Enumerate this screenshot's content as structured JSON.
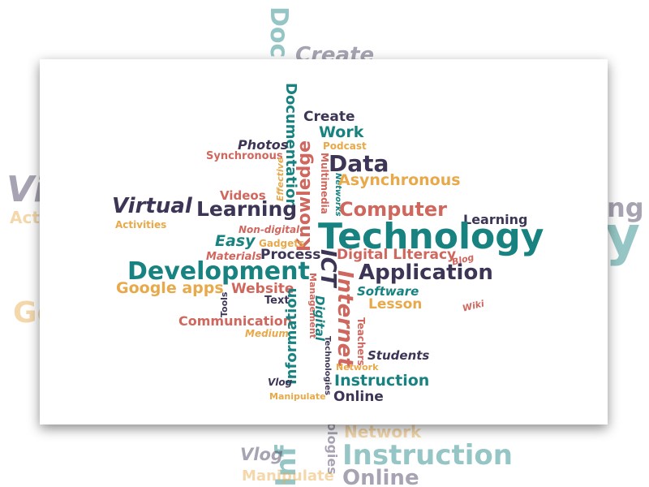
{
  "colors": {
    "teal": "#17827f",
    "navy": "#3d3556",
    "coral": "#d0675e",
    "gold": "#e8a94a",
    "grey": "#8f8aa2"
  },
  "background_words": {
    "docu": "Docu",
    "create": "Create",
    "vi": "Vi",
    "act": "Act",
    "ng": "ng",
    "y": "y",
    "go": "Go",
    "inf": "Inf",
    "ologies": "ologies",
    "network": "Network",
    "instruction": "Instruction",
    "vlog": "Vlog",
    "online": "Online",
    "manipulate": "Manipulate"
  },
  "cloud": {
    "documentation": "Documentation",
    "create": "Create",
    "work": "Work",
    "photos": "Photos",
    "podcast": "Podcast",
    "synchronous": "Synchronous",
    "knowledge": "Knowledge",
    "multimedia": "Multimedia",
    "networks": "Networks",
    "data": "Data",
    "effective": "Effective",
    "asynchronous": "Asynchronous",
    "videos": "Videos",
    "virtual": "Virtual",
    "learning": "Learning",
    "computer": "Computer",
    "learning_small": "Learning",
    "activities": "Activities",
    "non_digital": "Non-digital",
    "technology": "Technology",
    "easy": "Easy",
    "gadgets": "Gadgets",
    "materials": "Materials",
    "process": "Process",
    "ict": "ICT",
    "digital_literacy": "Digital LIteracy",
    "blog": "Blog",
    "development": "Development",
    "application": "Application",
    "google_apps": "Google apps",
    "website": "Website",
    "management": "Management",
    "internet": "Internet",
    "software": "Software",
    "wiki": "Wiki",
    "tools": "Tools",
    "text": "Text",
    "digital": "Digital",
    "lesson": "Lesson",
    "communication": "Communication",
    "medium": "Medium",
    "information": "Information",
    "technologies": "Technologies",
    "teachers": "Teachers",
    "students": "Students",
    "network": "Network",
    "vlog": "Vlog",
    "instruction": "Instruction",
    "manipulate": "Manipulate",
    "online": "Online"
  }
}
